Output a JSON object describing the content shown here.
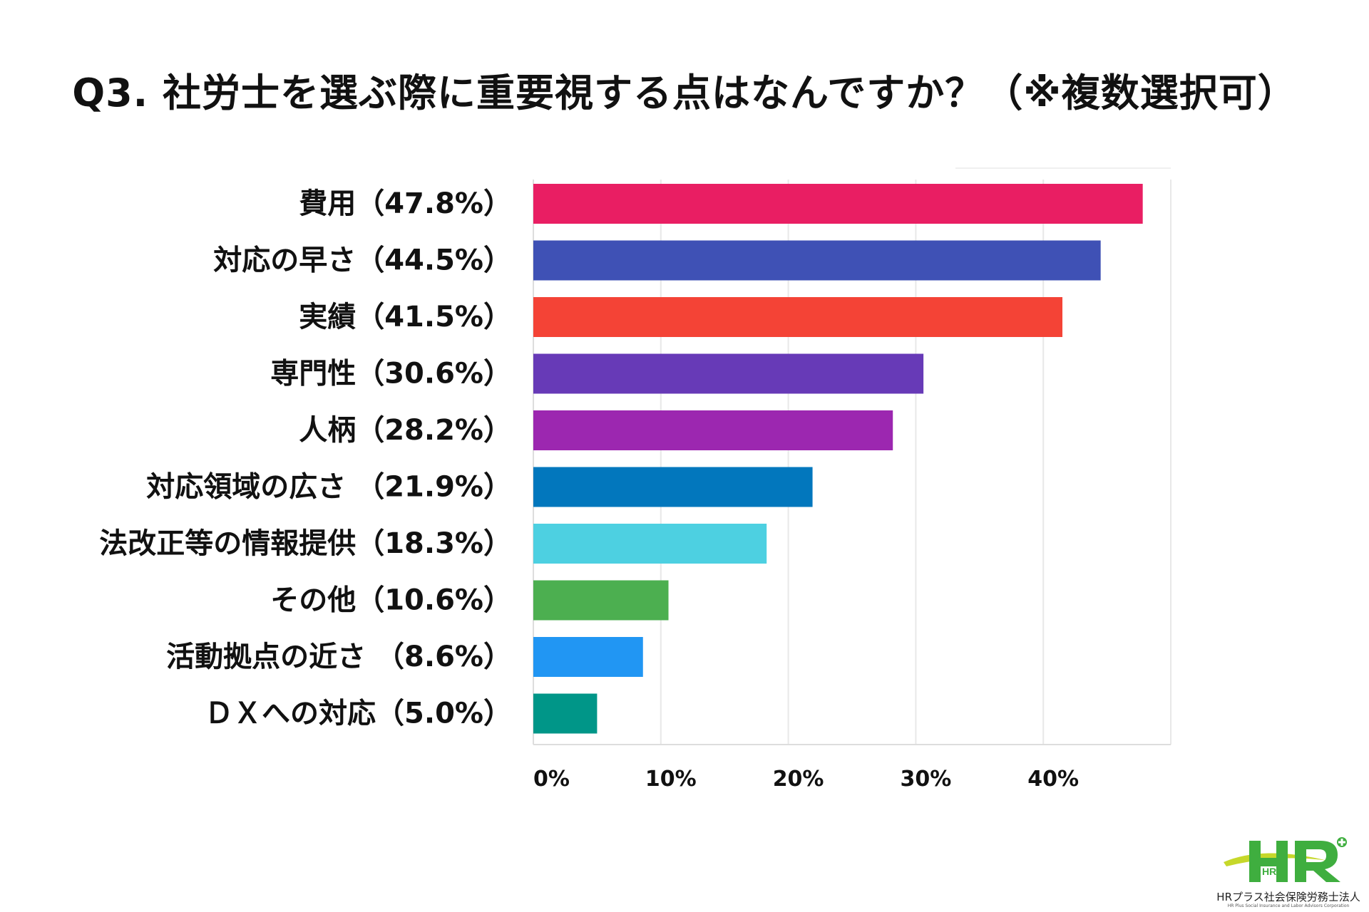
{
  "chart_data": {
    "type": "bar",
    "orientation": "horizontal",
    "title": "Q3. 社労士を選ぶ際に重要視する点はなんですか？（※複数選択可）",
    "categories": [
      "費用（47.8%）",
      "対応の早さ（44.5%）",
      "実績（41.5%）",
      "専門性（30.6%）",
      "人柄（28.2%）",
      "対応領域の広さ （21.9%）",
      "法改正等の情報提供（18.3%）",
      "その他（10.6%）",
      "活動拠点の近さ （8.6%）",
      "ＤＸへの対応（5.0%）"
    ],
    "values": [
      47.8,
      44.5,
      41.5,
      30.6,
      28.2,
      21.9,
      18.3,
      10.6,
      8.6,
      5.0
    ],
    "colors": [
      "#E91E63",
      "#3F51B5",
      "#F44336",
      "#673AB7",
      "#9C27B0",
      "#0277BD",
      "#4DD0E1",
      "#4CAF50",
      "#2196F3",
      "#009688"
    ],
    "xlim": [
      0,
      50
    ],
    "xticks": [
      0,
      10,
      20,
      30,
      40
    ],
    "xtick_labels": [
      "0%",
      "10%",
      "20%",
      "30%",
      "40%"
    ],
    "grid": true,
    "legend": "none"
  },
  "logo": {
    "mark": "HR",
    "name": "HRプラス社会保険労務士法人",
    "subtitle": "HR Plus Social Insurance and Labor Advisors Corporation"
  }
}
